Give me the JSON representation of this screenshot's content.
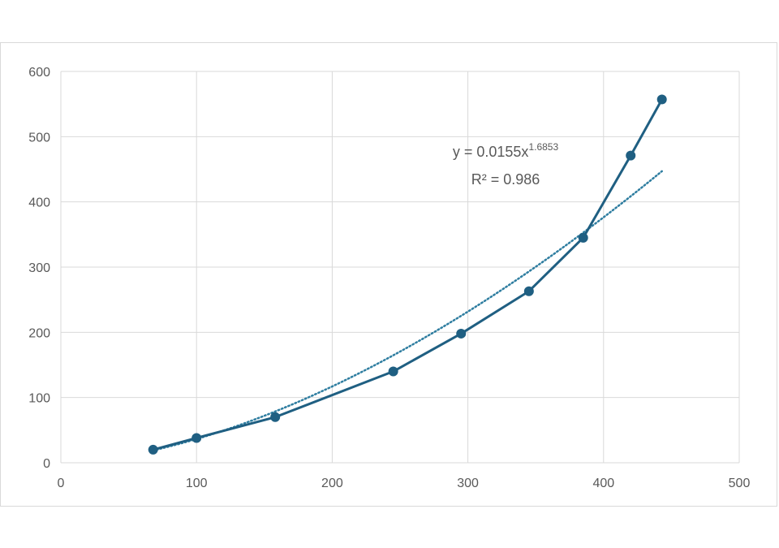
{
  "chart_data": {
    "type": "scatter",
    "x": [
      68,
      100,
      158,
      245,
      295,
      345,
      385,
      420,
      443
    ],
    "y": [
      20,
      38,
      70,
      140,
      198,
      263,
      345,
      471,
      557
    ],
    "xlim": [
      0,
      500
    ],
    "ylim": [
      0,
      600
    ],
    "xticks": [
      "0",
      "100",
      "200",
      "300",
      "400",
      "500"
    ],
    "yticks": [
      "0",
      "100",
      "200",
      "300",
      "400",
      "500",
      "600"
    ],
    "grid": true,
    "series_color": "#1f5f82",
    "trendline": {
      "type": "power",
      "a": 0.0155,
      "b": 1.6853,
      "color": "#2e7da0",
      "equation_prefix": "y = 0.0155x",
      "equation_exponent": "1.6853",
      "r2_label": "R² = 0.986"
    }
  }
}
